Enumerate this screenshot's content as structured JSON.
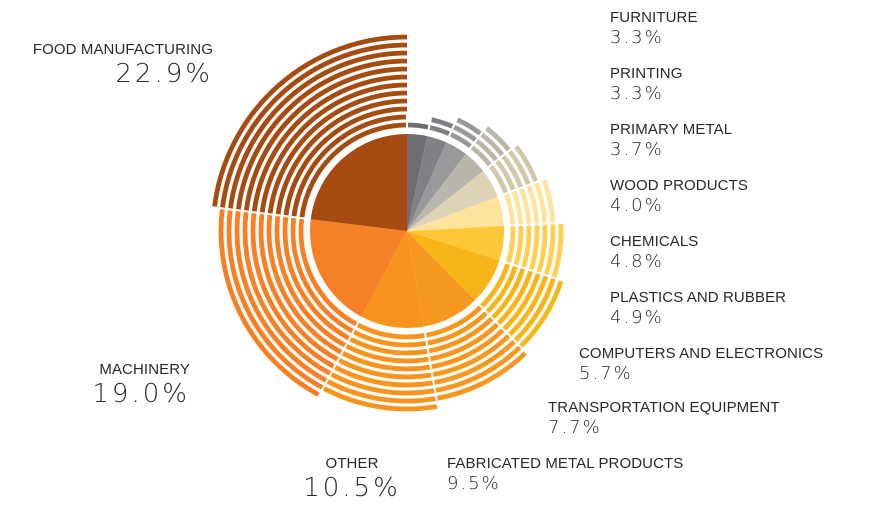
{
  "chart_data": {
    "type": "pie",
    "categories": [
      "FURNITURE",
      "PRINTING",
      "PRIMARY METAL",
      "WOOD PRODUCTS",
      "CHEMICALS",
      "PLASTICS AND RUBBER",
      "COMPUTERS AND ELECTRONICS",
      "TRANSPORTATION EQUIPMENT",
      "FABRICATED METAL PRODUCTS",
      "OTHER",
      "MACHINERY",
      "FOOD MANUFACTURING"
    ],
    "values": [
      3.3,
      3.3,
      3.7,
      4.0,
      4.8,
      4.9,
      5.7,
      7.7,
      9.5,
      10.5,
      19.0,
      22.9
    ],
    "value_labels": [
      "3.3%",
      "3.3%",
      "3.7%",
      "4.0%",
      "4.8%",
      "4.9%",
      "5.7%",
      "7.7%",
      "9.5%",
      "10.5%",
      "19.0%",
      "22.9%"
    ],
    "colors": [
      "#6d6e71",
      "#808184",
      "#99999b",
      "#b9b6ab",
      "#ddd3b6",
      "#fde39b",
      "#fec737",
      "#f8b51a",
      "#f7981e",
      "#f7941d",
      "#f58025",
      "#a64b11"
    ],
    "ring_colors": [
      "#6d6e71",
      "#808184",
      "#99999b",
      "#b9b6ab",
      "#d1c8a8",
      "#fde39b",
      "#fecf52",
      "#f8b51a",
      "#f7981e",
      "#f7941d",
      "#f58025",
      "#a64b11"
    ]
  }
}
